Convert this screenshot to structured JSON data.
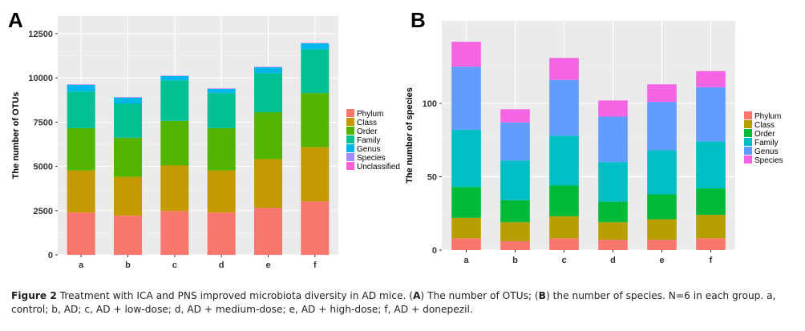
{
  "chart_data": [
    {
      "type": "bar",
      "stacked": true,
      "panel": "A",
      "title": "",
      "xlabel": "",
      "ylabel": "The number of OTUs",
      "ylim": [
        0,
        12500
      ],
      "yticks": [
        0,
        2500,
        5000,
        7500,
        10000,
        12500
      ],
      "grid": true,
      "legend_position": "right",
      "categories": [
        "a",
        "b",
        "c",
        "d",
        "e",
        "f"
      ],
      "series": [
        {
          "name": "Phylum",
          "color": "#F8766D",
          "values": [
            2390,
            2210,
            2480,
            2390,
            2660,
            3020
          ]
        },
        {
          "name": "Class",
          "color": "#C49A00",
          "values": [
            2380,
            2200,
            2570,
            2380,
            2750,
            3060
          ]
        },
        {
          "name": "Order",
          "color": "#53B400",
          "values": [
            2390,
            2210,
            2520,
            2390,
            2650,
            3060
          ]
        },
        {
          "name": "Family",
          "color": "#00C094",
          "values": [
            2070,
            1940,
            2290,
            1980,
            2210,
            2480
          ]
        },
        {
          "name": "Genus",
          "color": "#00B6EB",
          "values": [
            380,
            330,
            240,
            240,
            330,
            330
          ]
        },
        {
          "name": "Species",
          "color": "#A58AFF",
          "values": [
            20,
            20,
            20,
            20,
            20,
            20
          ]
        },
        {
          "name": "Unclassified",
          "color": "#FB61D7",
          "values": [
            10,
            10,
            10,
            10,
            10,
            10
          ]
        }
      ]
    },
    {
      "type": "bar",
      "stacked": true,
      "panel": "B",
      "title": "",
      "xlabel": "",
      "ylabel": "The number of species",
      "ylim": [
        0,
        150
      ],
      "yticks": [
        0,
        50,
        100
      ],
      "grid": true,
      "legend_position": "right",
      "categories": [
        "a",
        "b",
        "c",
        "d",
        "e",
        "f"
      ],
      "series": [
        {
          "name": "Phylum",
          "color": "#F8766D",
          "values": [
            8,
            6,
            8,
            7,
            7,
            8
          ]
        },
        {
          "name": "Class",
          "color": "#B79F00",
          "values": [
            14,
            13,
            15,
            12,
            14,
            16
          ]
        },
        {
          "name": "Order",
          "color": "#00BA38",
          "values": [
            21,
            15,
            21,
            14,
            17,
            18
          ]
        },
        {
          "name": "Family",
          "color": "#00BFC4",
          "values": [
            39,
            27,
            34,
            27,
            30,
            32
          ]
        },
        {
          "name": "Genus",
          "color": "#619CFF",
          "values": [
            43,
            26,
            38,
            31,
            33,
            37
          ]
        },
        {
          "name": "Species",
          "color": "#F564E3",
          "values": [
            17,
            9,
            15,
            11,
            12,
            11
          ]
        }
      ]
    }
  ],
  "panels": {
    "a_letter": "A",
    "b_letter": "B"
  },
  "caption": {
    "label": "Figure 2",
    "text1": " Treatment with ICA and PNS improved microbiota diversity in AD mice. (",
    "a": "A",
    "text2": ") The number of OTUs; (",
    "b": "B",
    "text3": ") the number of species. N=6 in each group. a, control; b, AD; c, AD + low-dose; d, AD + medium-dose; e, AD + high-dose; f, AD + donepezil."
  }
}
